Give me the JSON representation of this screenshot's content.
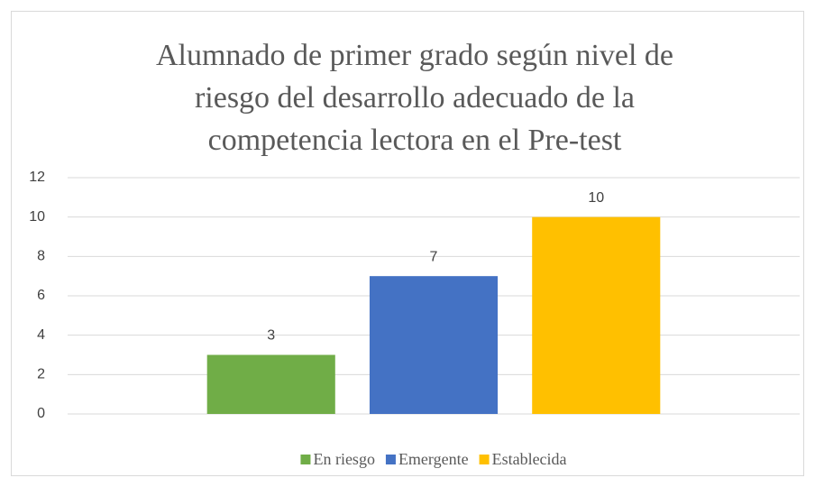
{
  "chart_data": {
    "type": "bar",
    "title": "Alumnado de primer grado según nivel de riesgo del desarrollo adecuado de la competencia lectora en el Pre-test",
    "categories": [
      null
    ],
    "series": [
      {
        "name": "En riesgo",
        "color": "#70ad47",
        "values": [
          3
        ]
      },
      {
        "name": "Emergente",
        "color": "#4472c4",
        "values": [
          7
        ]
      },
      {
        "name": "Establecida",
        "color": "#ffc000",
        "values": [
          10
        ]
      }
    ],
    "ylim": [
      0,
      12
    ],
    "yticks": [
      0,
      2,
      4,
      6,
      8,
      10,
      12
    ],
    "grid": true,
    "legend": "bottom"
  }
}
